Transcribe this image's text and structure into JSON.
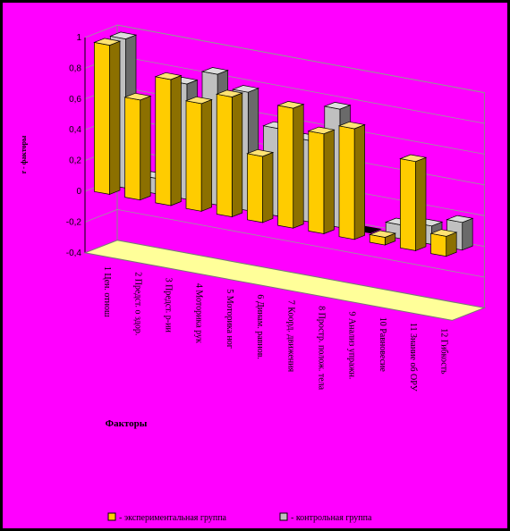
{
  "chart_data": {
    "type": "bar",
    "style": "3d-clustered-columns",
    "ylabel": "r - факторы",
    "xlabel": "Факторы",
    "ylim": [
      -0.4,
      1
    ],
    "yticks": [
      "1",
      "0,8",
      "0,6",
      "0,4",
      "0,2",
      "0",
      "-0,2",
      "-0,4"
    ],
    "grid": true,
    "legend_position": "bottom",
    "categories": [
      "1 Цен. отнош",
      "2 Предст. о здор.",
      "3 Предст. p-ии",
      "4 Моторика рук",
      "5 Моторика ног",
      "6 Динам. равнов.",
      "7 Коорд. движения",
      "8 Простр. полож. тела",
      "9 Анализ упражн.",
      "10 Равновесие",
      "11 Знание об ОРУ",
      "12 Гибкость"
    ],
    "series": [
      {
        "name": "- экспериментальная группа",
        "color": "#ffcc00",
        "values": [
          0.97,
          0.65,
          0.82,
          0.7,
          0.78,
          0.43,
          0.78,
          0.65,
          0.72,
          0.05,
          0.58,
          0.13
        ]
      },
      {
        "name": "- контрольная группа",
        "color": "#c0c0c0",
        "values": [
          0.97,
          0.1,
          0.75,
          0.85,
          0.77,
          0.57,
          0.53,
          0.77,
          0.0,
          0.09,
          0.12,
          0.18
        ]
      }
    ]
  }
}
